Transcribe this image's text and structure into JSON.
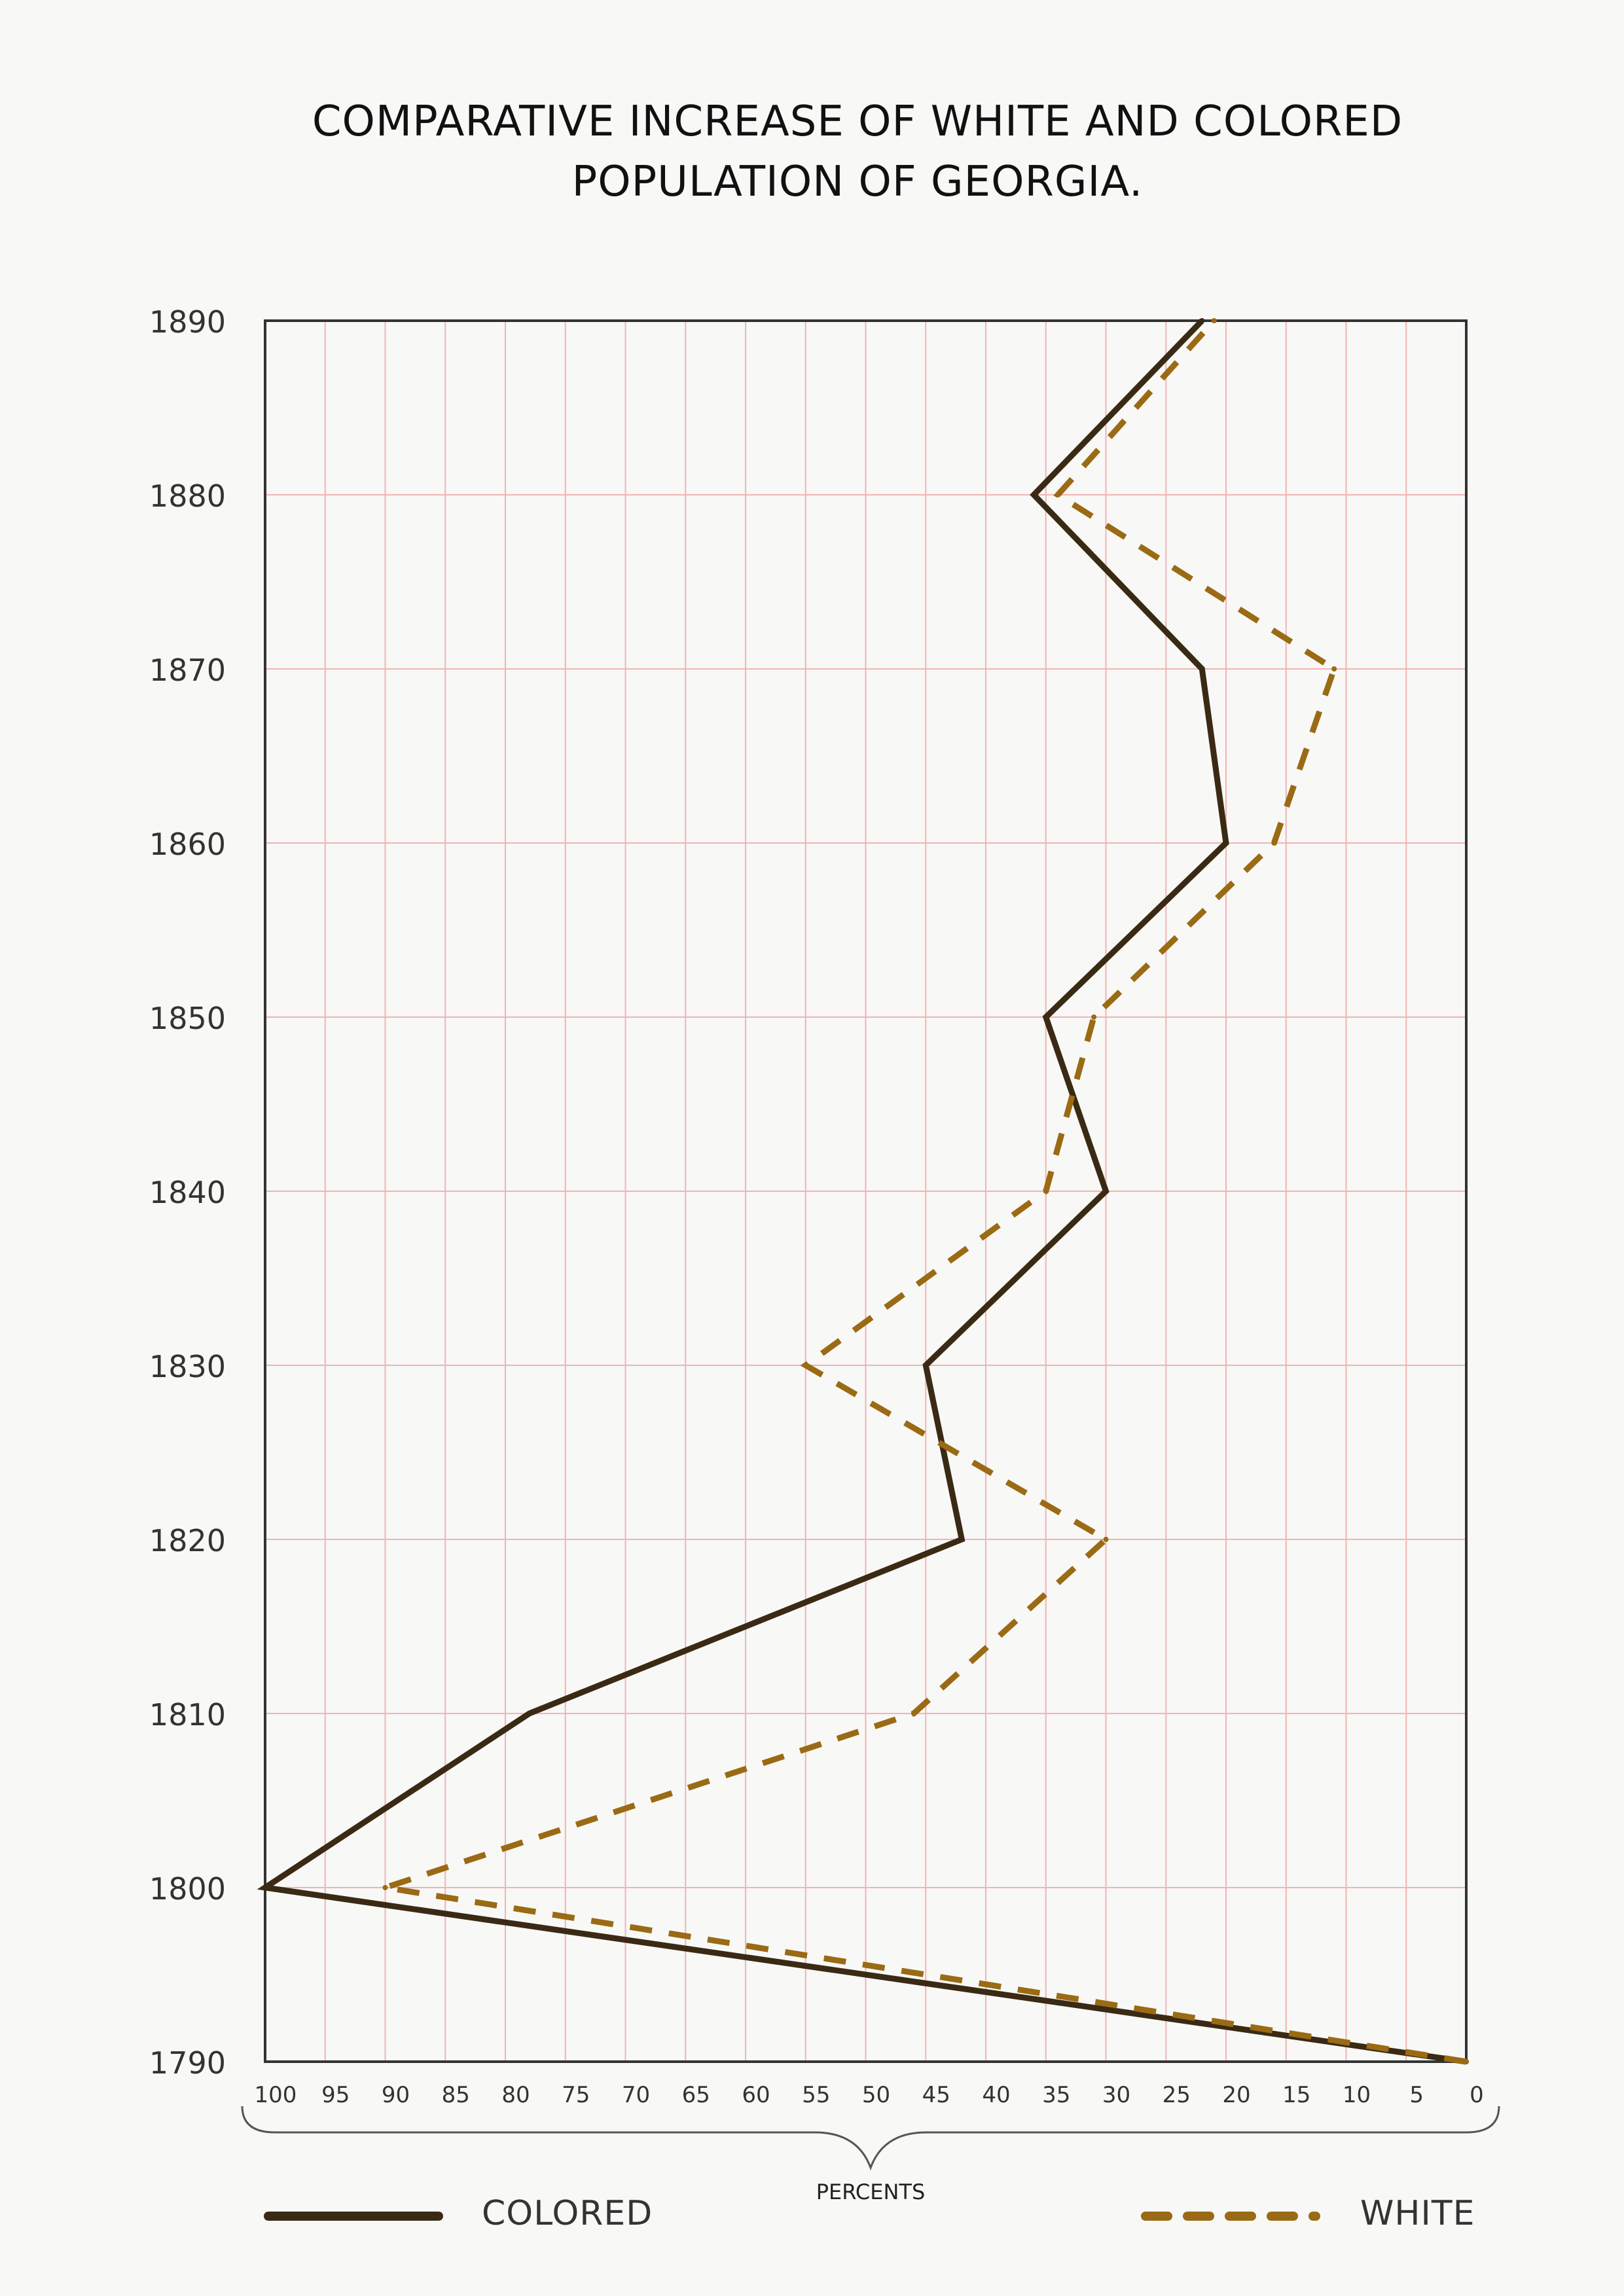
{
  "chart_data": {
    "type": "line",
    "title": [
      "COMPARATIVE INCREASE OF WHITE AND COLORED",
      "POPULATION OF GEORGIA."
    ],
    "xlabel": "PERCENTS",
    "ylabel": "",
    "x_axis": "percent increase (reversed, 100 at left to 0 at right)",
    "xlim": [
      100,
      0
    ],
    "xticks": [
      100,
      95,
      90,
      85,
      80,
      75,
      70,
      65,
      60,
      55,
      50,
      45,
      40,
      35,
      30,
      25,
      20,
      15,
      10,
      5,
      0
    ],
    "ylim": [
      1790,
      1890
    ],
    "yticks": [
      1790,
      1800,
      1810,
      1820,
      1830,
      1840,
      1850,
      1860,
      1870,
      1880,
      1890
    ],
    "grid": true,
    "legend_position": "bottom",
    "series": [
      {
        "name": "COLORED",
        "style": "solid",
        "color": "#3a2a14",
        "points": [
          {
            "year": 1790,
            "percent": 0
          },
          {
            "year": 1800,
            "percent": 100
          },
          {
            "year": 1810,
            "percent": 78
          },
          {
            "year": 1820,
            "percent": 42
          },
          {
            "year": 1830,
            "percent": 45
          },
          {
            "year": 1840,
            "percent": 30
          },
          {
            "year": 1850,
            "percent": 35
          },
          {
            "year": 1860,
            "percent": 20
          },
          {
            "year": 1870,
            "percent": 22
          },
          {
            "year": 1880,
            "percent": 36
          },
          {
            "year": 1890,
            "percent": 22
          }
        ]
      },
      {
        "name": "WHITE",
        "style": "dashed",
        "color": "#9a6a14",
        "points": [
          {
            "year": 1790,
            "percent": 0
          },
          {
            "year": 1800,
            "percent": 90
          },
          {
            "year": 1810,
            "percent": 46
          },
          {
            "year": 1820,
            "percent": 30
          },
          {
            "year": 1830,
            "percent": 55
          },
          {
            "year": 1840,
            "percent": 35
          },
          {
            "year": 1850,
            "percent": 31
          },
          {
            "year": 1860,
            "percent": 16
          },
          {
            "year": 1870,
            "percent": 11
          },
          {
            "year": 1880,
            "percent": 34
          },
          {
            "year": 1890,
            "percent": 21
          }
        ]
      }
    ]
  },
  "colors": {
    "background": "#f8f8f6",
    "grid": "#f0b4b4",
    "frame": "#333333",
    "colored_line": "#3a2a14",
    "white_line": "#9a6a14"
  }
}
